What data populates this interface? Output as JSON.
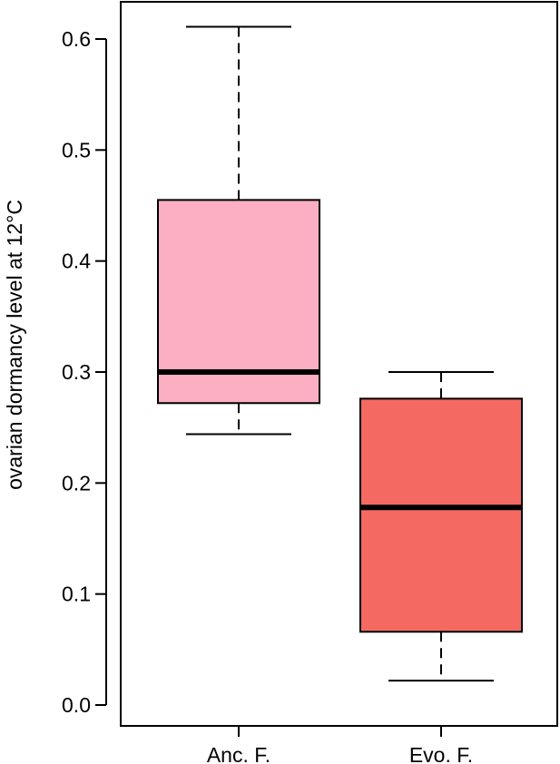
{
  "chart_data": {
    "type": "boxplot",
    "title": "",
    "xlabel": "",
    "ylabel": "ovarian dormancy level at 12°C",
    "ylim": [
      0.0,
      0.6
    ],
    "yticks": [
      "0.0",
      "0.1",
      "0.2",
      "0.3",
      "0.4",
      "0.5",
      "0.6"
    ],
    "grid": false,
    "categories": [
      "Anc. F.",
      "Evo. F."
    ],
    "series": [
      {
        "category": "Anc. F.",
        "color": "#fcaec2",
        "min": 0.244,
        "q1": 0.272,
        "median": 0.3,
        "q3": 0.455,
        "max": 0.611
      },
      {
        "category": "Evo. F.",
        "color": "#f46a62",
        "min": 0.022,
        "q1": 0.066,
        "median": 0.178,
        "q3": 0.276,
        "max": 0.3
      }
    ]
  }
}
